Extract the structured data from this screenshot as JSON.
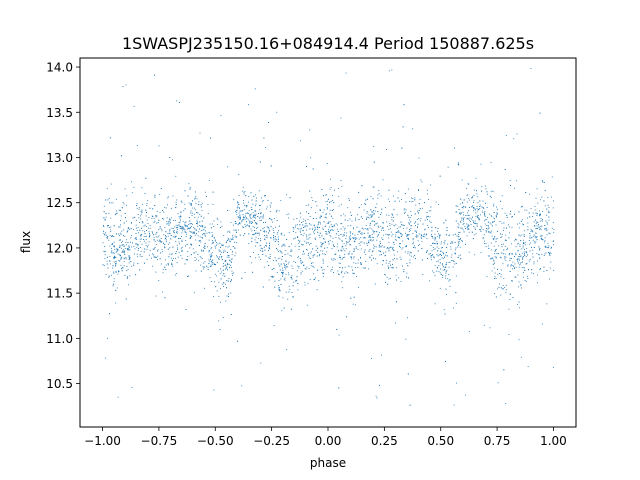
{
  "chart_data": {
    "type": "scatter",
    "title": "1SWASPJ235150.16+084914.4 Period 150887.625s",
    "xlabel": "phase",
    "ylabel": "flux",
    "xlim": [
      -1.1,
      1.1
    ],
    "ylim": [
      10.02,
      14.1
    ],
    "x_ticks": [
      -1.0,
      -0.75,
      -0.5,
      -0.25,
      0.0,
      0.25,
      0.5,
      0.75,
      1.0
    ],
    "x_tick_labels": [
      "−1.00",
      "−0.75",
      "−0.50",
      "−0.25",
      "0.00",
      "0.25",
      "0.50",
      "0.75",
      "1.00"
    ],
    "y_ticks": [
      10.5,
      11.0,
      11.5,
      12.0,
      12.5,
      13.0,
      13.5,
      14.0
    ],
    "y_tick_labels": [
      "10.5",
      "11.0",
      "11.5",
      "12.0",
      "12.5",
      "13.0",
      "13.5",
      "14.0"
    ],
    "grid": false,
    "point_color": "#1f77b4",
    "series": [
      {
        "phase_range": [
          -1.0,
          1.0
        ],
        "flux_range": [
          10.2,
          14.0
        ],
        "profile": {
          "phase": [
            0.0,
            0.05,
            0.1,
            0.15,
            0.2,
            0.25,
            0.3,
            0.35,
            0.4,
            0.45,
            0.5,
            0.55,
            0.6,
            0.65,
            0.7,
            0.75,
            0.8,
            0.85,
            0.9,
            0.95,
            1.0
          ],
          "median_flux": [
            12.15,
            12.0,
            12.0,
            12.15,
            12.2,
            12.1,
            12.15,
            12.2,
            12.3,
            12.1,
            11.9,
            11.8,
            12.35,
            12.35,
            12.3,
            12.0,
            11.85,
            11.9,
            12.1,
            12.15,
            12.15
          ],
          "scatter": [
            0.22,
            0.24,
            0.22,
            0.2,
            0.2,
            0.22,
            0.22,
            0.2,
            0.22,
            0.22,
            0.2,
            0.22,
            0.14,
            0.14,
            0.2,
            0.26,
            0.28,
            0.24,
            0.2,
            0.22,
            0.22
          ]
        }
      }
    ]
  }
}
